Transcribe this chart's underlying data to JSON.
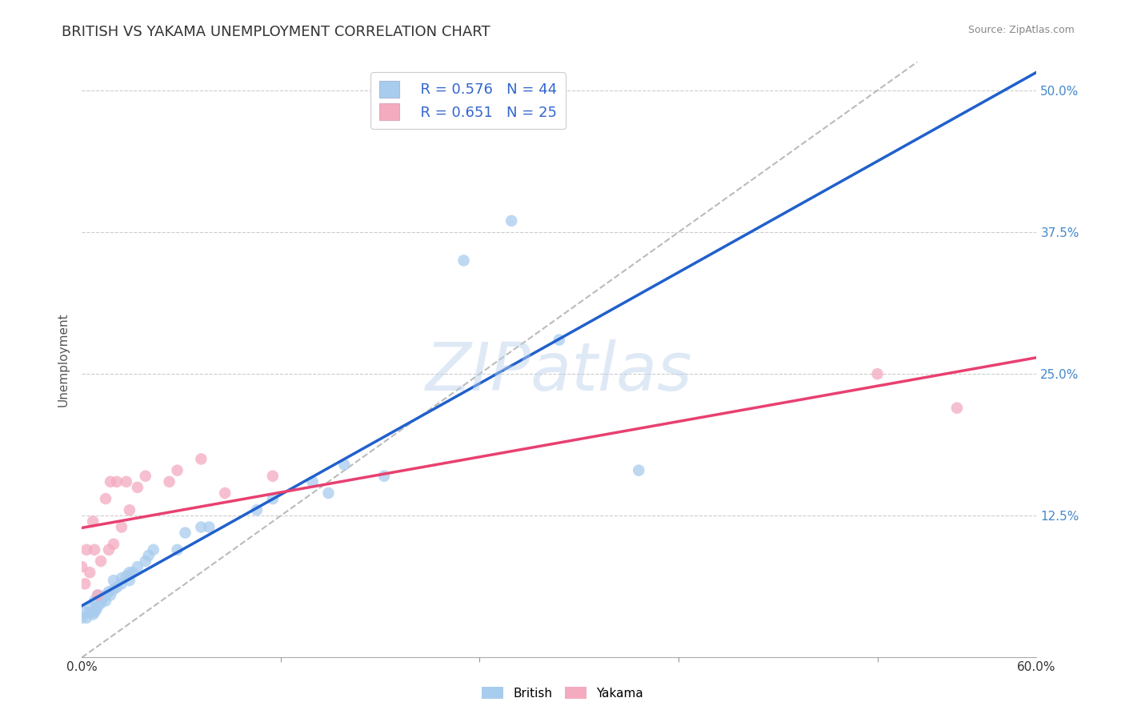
{
  "title": "BRITISH VS YAKAMA UNEMPLOYMENT CORRELATION CHART",
  "source_text": "Source: ZipAtlas.com",
  "ylabel": "Unemployment",
  "xlim": [
    0.0,
    0.6
  ],
  "ylim": [
    0.0,
    0.525
  ],
  "xtick_labels_ends": [
    "0.0%",
    "60.0%"
  ],
  "xtick_vals_ends": [
    0.0,
    0.6
  ],
  "xtick_minor_vals": [
    0.125,
    0.25,
    0.375,
    0.5
  ],
  "ytick_labels": [
    "12.5%",
    "25.0%",
    "37.5%",
    "50.0%"
  ],
  "ytick_vals": [
    0.125,
    0.25,
    0.375,
    0.5
  ],
  "british_R": 0.576,
  "british_N": 44,
  "yakama_R": 0.651,
  "yakama_N": 25,
  "british_color": "#A8CCEE",
  "yakama_color": "#F4AABF",
  "british_line_color": "#2060CC",
  "yakama_line_color": "#E84070",
  "diag_line_color": "#BBBBBB",
  "right_tick_color": "#4488CC",
  "title_fontsize": 13,
  "legend_text_color": "#3366CC",
  "watermark": "ZIPatlas",
  "british_x": [
    0.0,
    0.002,
    0.003,
    0.005,
    0.005,
    0.007,
    0.008,
    0.008,
    0.009,
    0.01,
    0.01,
    0.012,
    0.013,
    0.015,
    0.015,
    0.017,
    0.018,
    0.02,
    0.02,
    0.022,
    0.025,
    0.025,
    0.028,
    0.03,
    0.03,
    0.032,
    0.035,
    0.04,
    0.042,
    0.045,
    0.06,
    0.065,
    0.075,
    0.08,
    0.11,
    0.12,
    0.145,
    0.155,
    0.165,
    0.19,
    0.24,
    0.27,
    0.3,
    0.35
  ],
  "british_y": [
    0.035,
    0.04,
    0.035,
    0.04,
    0.045,
    0.038,
    0.04,
    0.05,
    0.042,
    0.045,
    0.055,
    0.048,
    0.052,
    0.05,
    0.055,
    0.058,
    0.055,
    0.06,
    0.068,
    0.062,
    0.065,
    0.07,
    0.072,
    0.068,
    0.075,
    0.075,
    0.08,
    0.085,
    0.09,
    0.095,
    0.095,
    0.11,
    0.115,
    0.115,
    0.13,
    0.14,
    0.155,
    0.145,
    0.17,
    0.16,
    0.35,
    0.385,
    0.28,
    0.165
  ],
  "yakama_x": [
    0.0,
    0.002,
    0.003,
    0.005,
    0.007,
    0.008,
    0.01,
    0.012,
    0.015,
    0.017,
    0.018,
    0.02,
    0.022,
    0.025,
    0.028,
    0.03,
    0.035,
    0.04,
    0.055,
    0.06,
    0.075,
    0.09,
    0.12,
    0.5,
    0.55
  ],
  "yakama_y": [
    0.08,
    0.065,
    0.095,
    0.075,
    0.12,
    0.095,
    0.055,
    0.085,
    0.14,
    0.095,
    0.155,
    0.1,
    0.155,
    0.115,
    0.155,
    0.13,
    0.15,
    0.16,
    0.155,
    0.165,
    0.175,
    0.145,
    0.16,
    0.25,
    0.22
  ]
}
